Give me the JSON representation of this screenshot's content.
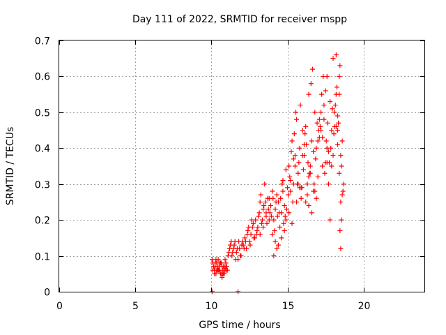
{
  "chart_data": {
    "type": "scatter",
    "title": "Day 111 of 2022, SRMTID for receiver mspp",
    "xlabel": "GPS time / hours",
    "ylabel": "SRMTID / TECUs",
    "xlim": [
      0,
      24
    ],
    "ylim": [
      0,
      0.7
    ],
    "x_ticks": [
      0,
      5,
      10,
      15,
      20
    ],
    "y_ticks": [
      0,
      0.1,
      0.2,
      0.3,
      0.4,
      0.5,
      0.6,
      0.7
    ],
    "x_tick_labels": [
      "0",
      "5",
      "10",
      "15",
      "20"
    ],
    "y_tick_labels": [
      "0",
      "0.1",
      "0.2",
      "0.3",
      "0.4",
      "0.5",
      "0.6",
      "0.7"
    ],
    "grid": true,
    "legend": "none",
    "marker": "plus",
    "marker_color": "#ff0000",
    "series": [
      {
        "x": [
          10.05,
          10.1,
          10.15,
          10.2,
          10.25,
          10.3,
          10.35,
          10.4,
          10.45,
          10.5,
          10.55,
          10.6,
          10.65,
          10.7,
          10.75,
          10.8,
          10.85,
          10.9,
          10.95,
          11.0,
          10.1,
          10.2,
          10.3,
          10.4,
          10.5,
          10.6,
          10.7,
          10.8,
          10.9,
          11.0,
          10.15,
          10.35,
          10.55,
          10.75,
          10.95,
          10.25,
          10.45,
          10.65,
          10.85,
          11.05,
          11.1,
          11.2,
          11.3,
          11.4,
          11.5,
          11.6,
          11.7,
          11.8,
          11.9,
          12.0,
          11.15,
          11.25,
          11.35,
          11.45,
          11.55,
          11.65,
          11.75,
          11.85,
          11.95,
          12.05,
          12.1,
          12.2,
          12.3,
          12.4,
          12.5,
          12.6,
          12.7,
          12.8,
          12.9,
          13.0,
          12.15,
          12.35,
          12.55,
          12.75,
          12.95,
          12.25,
          12.45,
          12.65,
          12.85,
          13.05,
          13.1,
          13.2,
          13.3,
          13.4,
          13.5,
          13.6,
          13.7,
          13.8,
          13.9,
          14.0,
          13.15,
          13.35,
          13.55,
          13.75,
          13.95,
          13.25,
          13.45,
          13.65,
          13.85,
          14.05,
          14.1,
          14.2,
          14.3,
          14.4,
          14.5,
          14.6,
          14.7,
          14.8,
          14.9,
          15.0,
          14.15,
          14.35,
          14.55,
          14.75,
          14.95,
          14.25,
          14.45,
          14.65,
          14.85,
          15.05,
          15.1,
          15.2,
          15.3,
          15.4,
          15.5,
          15.6,
          15.7,
          15.8,
          15.9,
          16.0,
          15.15,
          15.35,
          15.55,
          15.75,
          15.95,
          15.25,
          15.45,
          15.65,
          15.85,
          16.05,
          16.1,
          16.2,
          16.3,
          16.4,
          16.5,
          16.6,
          16.7,
          16.8,
          16.9,
          17.0,
          16.15,
          16.35,
          16.55,
          16.75,
          16.95,
          16.25,
          16.45,
          16.65,
          16.85,
          17.05,
          17.1,
          17.2,
          17.3,
          17.4,
          17.5,
          17.6,
          17.7,
          17.8,
          17.9,
          18.0,
          17.15,
          17.35,
          17.55,
          17.75,
          17.95,
          17.25,
          17.45,
          17.65,
          17.85,
          18.05,
          18.1,
          18.2,
          18.3,
          18.4,
          18.5,
          18.6,
          18.7,
          18.15,
          18.35,
          18.55,
          18.25,
          18.45,
          18.65,
          18.3,
          18.5,
          18.4,
          18.6,
          18.2,
          18.55,
          18.45,
          14.1,
          14.3,
          15.1,
          15.3,
          15.5,
          16.2,
          16.4,
          16.6,
          17.2,
          17.4,
          17.6,
          17.8,
          18.0,
          18.2,
          18.4,
          15.7,
          16.0,
          16.8,
          17.0,
          17.9,
          14.0,
          14.2,
          14.4,
          14.6,
          14.8,
          15.2,
          15.4,
          15.6,
          15.8,
          16.1,
          16.3,
          16.5,
          16.7,
          16.9,
          17.1,
          17.3,
          17.5,
          17.7,
          18.1,
          18.3,
          13.2,
          13.4,
          13.6,
          13.8,
          14.7,
          14.9,
          15.9,
          16.4,
          17.6,
          18.5
        ],
        "y": [
          0.09,
          0.08,
          0.07,
          0.06,
          0.07,
          0.05,
          0.08,
          0.06,
          0.09,
          0.07,
          0.06,
          0.05,
          0.08,
          0.04,
          0.06,
          0.07,
          0.05,
          0.09,
          0.08,
          0.06,
          0.06,
          0.05,
          0.09,
          0.07,
          0.06,
          0.08,
          0.07,
          0.05,
          0.06,
          0.07,
          0.07,
          0.06,
          0.08,
          0.05,
          0.07,
          0.08,
          0.06,
          0.05,
          0.07,
          0.06,
          0.1,
          0.12,
          0.14,
          0.11,
          0.13,
          0.09,
          0.12,
          0.14,
          0.1,
          0.13,
          0.11,
          0.13,
          0.1,
          0.12,
          0.14,
          0.11,
          0.09,
          0.12,
          0.1,
          0.14,
          0.13,
          0.15,
          0.12,
          0.17,
          0.14,
          0.16,
          0.18,
          0.15,
          0.2,
          0.17,
          0.12,
          0.16,
          0.13,
          0.19,
          0.16,
          0.14,
          0.18,
          0.2,
          0.15,
          0.18,
          0.21,
          0.25,
          0.19,
          0.23,
          0.3,
          0.22,
          0.26,
          0.2,
          0.24,
          0.28,
          0.22,
          0.2,
          0.25,
          0.23,
          0.21,
          0.27,
          0.24,
          0.19,
          0.22,
          0.26,
          0.2,
          0.23,
          0.27,
          0.25,
          0.18,
          0.22,
          0.28,
          0.24,
          0.2,
          0.29,
          0.17,
          0.21,
          0.26,
          0.19,
          0.23,
          0.25,
          0.22,
          0.3,
          0.21,
          0.27,
          0.35,
          0.28,
          0.42,
          0.3,
          0.38,
          0.48,
          0.33,
          0.4,
          0.26,
          0.45,
          0.32,
          0.25,
          0.5,
          0.36,
          0.29,
          0.39,
          0.44,
          0.3,
          0.52,
          0.34,
          0.38,
          0.46,
          0.3,
          0.55,
          0.35,
          0.42,
          0.28,
          0.5,
          0.4,
          0.32,
          0.44,
          0.36,
          0.58,
          0.3,
          0.47,
          0.41,
          0.33,
          0.62,
          0.37,
          0.45,
          0.43,
          0.5,
          0.35,
          0.48,
          0.56,
          0.4,
          0.3,
          0.53,
          0.45,
          0.38,
          0.46,
          0.6,
          0.42,
          0.36,
          0.51,
          0.55,
          0.33,
          0.47,
          0.4,
          0.44,
          0.5,
          0.55,
          0.45,
          0.6,
          0.38,
          0.42,
          0.3,
          0.52,
          0.47,
          0.35,
          0.57,
          0.63,
          0.28,
          0.41,
          0.25,
          0.33,
          0.27,
          0.46,
          0.2,
          0.17,
          0.1,
          0.12,
          0.22,
          0.19,
          0.35,
          0.25,
          0.32,
          0.22,
          0.45,
          0.52,
          0.6,
          0.2,
          0.65,
          0.66,
          0.55,
          0.3,
          0.38,
          0.28,
          0.42,
          0.35,
          0.16,
          0.14,
          0.13,
          0.15,
          0.17,
          0.31,
          0.37,
          0.25,
          0.29,
          0.41,
          0.27,
          0.33,
          0.39,
          0.26,
          0.48,
          0.43,
          0.36,
          0.39,
          0.46,
          0.49,
          0.16,
          0.18,
          0.21,
          0.26,
          0.31,
          0.34,
          0.29,
          0.24,
          0.36,
          0.12
        ]
      },
      {
        "x": [
          10.05,
          11.75
        ],
        "y": [
          0.0,
          0.0
        ]
      }
    ]
  }
}
